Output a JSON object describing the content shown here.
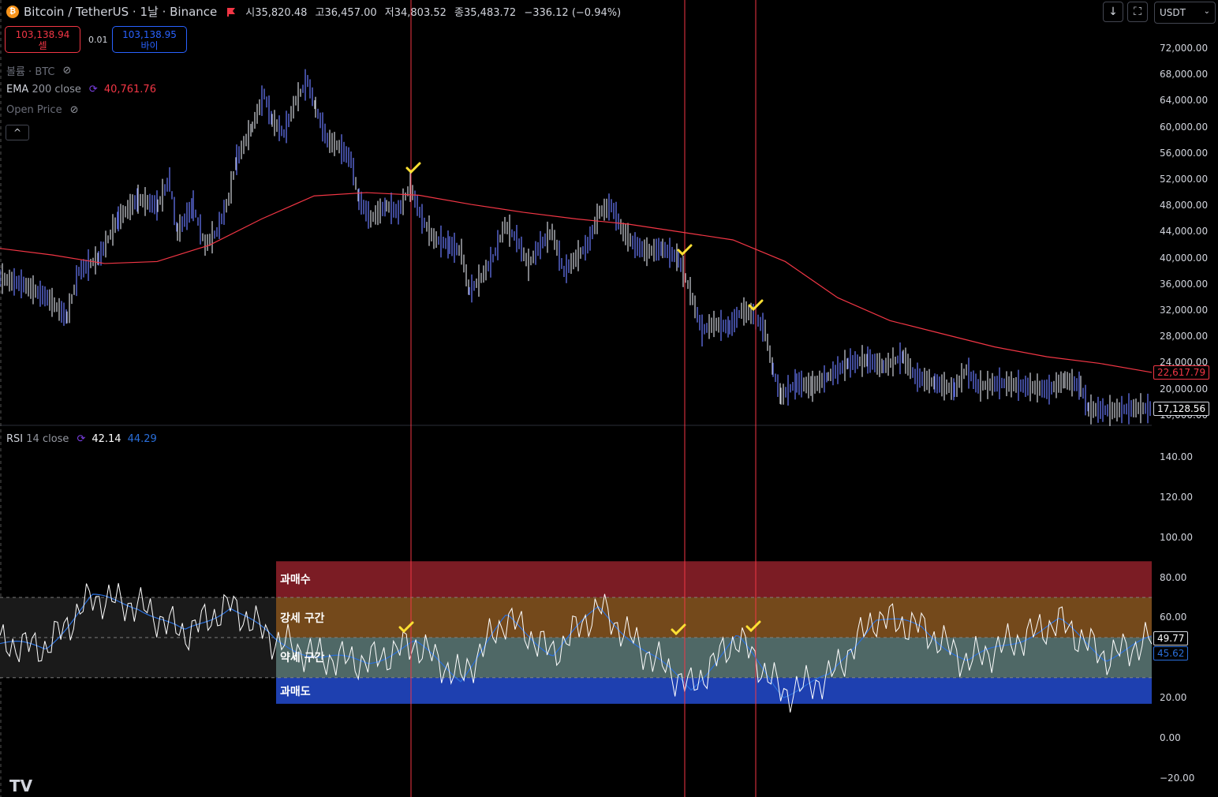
{
  "header": {
    "coin_icon": "bitcoin-icon",
    "symbol": "Bitcoin / TetherUS · 1날 · Binance",
    "open": "시35,820.48",
    "high": "고36,457.00",
    "low": "저34,803.52",
    "close": "종35,483.72",
    "change": "−336.12 (−0.94%)"
  },
  "toolbar": {
    "currency": "USDT"
  },
  "trade": {
    "sell_price": "103,138.94",
    "sell_label": "셀",
    "spread": "0.01",
    "buy_price": "103,138.95",
    "buy_label": "바이"
  },
  "indicators": {
    "volume_name": "볼륨 · BTC",
    "ema_name": "EMA",
    "ema_params": "200 close",
    "ema_value": "40,761.76",
    "open_price_name": "Open Price"
  },
  "rsi": {
    "name": "RSI",
    "params": "14 close",
    "value": "42.14",
    "ma_value": "44.29",
    "tag_value": "49.77",
    "tag_ma": "45.62"
  },
  "price_axis": {
    "labels": [
      "72,000.00",
      "68,000.00",
      "64,000.00",
      "60,000.00",
      "56,000.00",
      "52,000.00",
      "48,000.00",
      "44,000.00",
      "40,000.00",
      "36,000.00",
      "32,000.00",
      "28,000.00",
      "24,000.00",
      "20,000.00",
      "16,000.00"
    ],
    "ema_tag": "22,617.79",
    "last_tag": "17,128.56"
  },
  "rsi_axis": {
    "labels": [
      "140.00",
      "120.00",
      "100.00",
      "80.00",
      "60.00",
      "20.00",
      "0.00",
      "−20.00"
    ]
  },
  "zones": {
    "overbought": "과매수",
    "strong": "강세 구간",
    "weak": "약세 구간",
    "oversold": "과매도"
  },
  "colors": {
    "candle": "#6a7cff",
    "ema": "#f23645",
    "rsi_line": "#ffffff",
    "rsi_ma": "#2a6fdb",
    "vline": "#f23645",
    "check": "#ffe033",
    "zone_overbought": "#7b1c24",
    "zone_strong": "#74491b",
    "zone_weak": "#4f6866",
    "zone_oversold": "#1e40b0"
  },
  "logo": "TV",
  "chart_data": {
    "type": "line",
    "series": [
      {
        "name": "EMA 200 close",
        "values": [
          41500,
          40500,
          39200,
          39500,
          42000,
          46000,
          49500,
          50000,
          49600,
          48200,
          47000,
          46000,
          45200,
          44000,
          42800,
          39500,
          34000,
          30500,
          28500,
          26500,
          25000,
          24000,
          22617
        ]
      },
      {
        "name": "RSI 14 close",
        "values": [
          47,
          45,
          70,
          66,
          52,
          66,
          48,
          40,
          38,
          47,
          30,
          60,
          42,
          65,
          43,
          25,
          50,
          22,
          30,
          60,
          55,
          38,
          48,
          58,
          40,
          49
        ]
      }
    ],
    "ylim_price": [
      16000,
      72000
    ],
    "ylim_rsi": [
      -20,
      140
    ],
    "rsi_zones": [
      [
        70,
        88
      ],
      [
        50,
        70
      ],
      [
        30,
        50
      ],
      [
        17,
        30
      ]
    ]
  }
}
